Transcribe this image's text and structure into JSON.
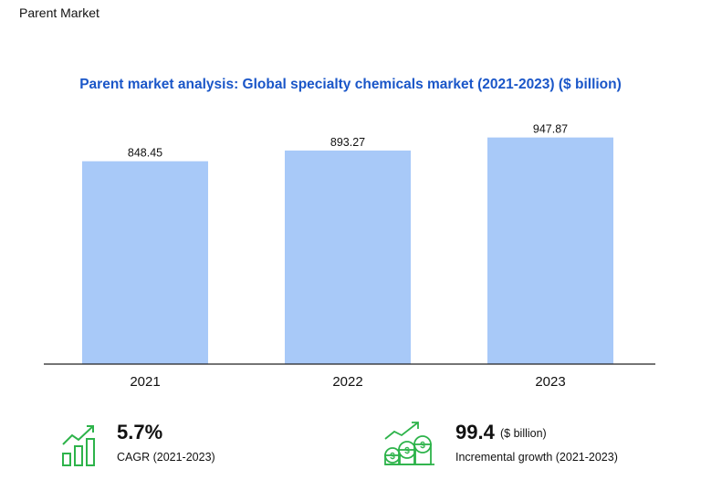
{
  "header": {
    "section_title": "Parent Market"
  },
  "chart_data": {
    "type": "bar",
    "title": "Parent market analysis: Global specialty chemicals market (2021-2023) ($ billion)",
    "categories": [
      "2021",
      "2022",
      "2023"
    ],
    "values": [
      848.45,
      893.27,
      947.87
    ],
    "value_labels": [
      "848.45",
      "893.27",
      "947.87"
    ],
    "xlabel": "",
    "ylabel": "",
    "ylim": [
      0,
      1000
    ],
    "grid": false,
    "bar_color": "#a8c9f8"
  },
  "stats": {
    "cagr": {
      "value": "5.7%",
      "label": "CAGR (2021-2023)"
    },
    "growth": {
      "value": "99.4",
      "unit": "($ billion)",
      "label": "Incremental growth (2021-2023)"
    }
  },
  "colors": {
    "accent_green": "#2db34a",
    "title_blue": "#1a56c8"
  }
}
